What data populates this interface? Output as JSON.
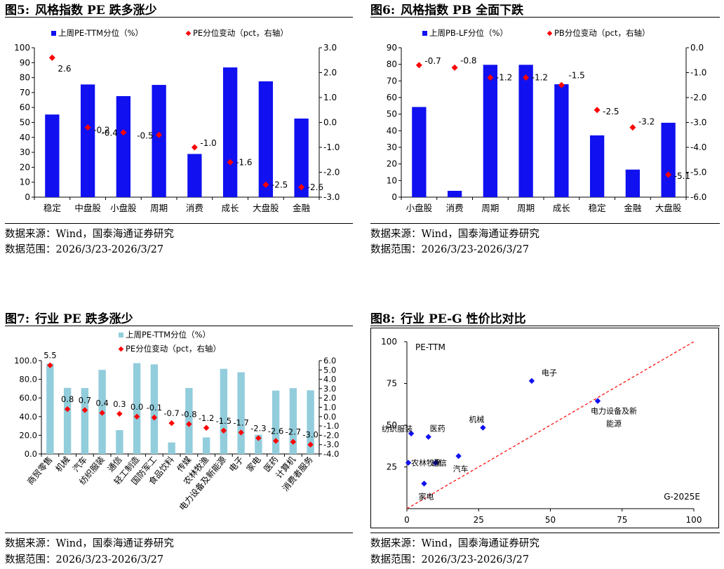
{
  "footer": {
    "source_label": "数据来源：",
    "source_value": "Wind，国泰海通证券研究",
    "range_label": "数据范围：",
    "range_value": "2026/3/23-2026/3/27"
  },
  "colors": {
    "blue": "#1010F0",
    "light_blue": "#92CDDC",
    "red": "#FF0000"
  },
  "panels": [
    {
      "fig_num": "图5:",
      "title": "风格指数 PE 跌多涨少"
    },
    {
      "fig_num": "图6:",
      "title": "风格指数 PB 全面下跌"
    },
    {
      "fig_num": "图7:",
      "title": "行业 PE 跌多涨少"
    },
    {
      "fig_num": "图8:",
      "title": "行业 PE-G 性价比对比"
    }
  ],
  "chart_data": [
    {
      "type": "bar",
      "categories": [
        "稳定",
        "中盘股",
        "小盘股",
        "周期",
        "消费",
        "成长",
        "大盘股",
        "金融"
      ],
      "series": [
        {
          "name": "上周PE-TTM分位（%）",
          "kind": "bar",
          "axis": "left",
          "values": [
            55.3,
            75.4,
            67.6,
            75.1,
            28.9,
            86.8,
            77.5,
            52.6
          ]
        },
        {
          "name": "PE分位变动（pct，右轴）",
          "kind": "marker",
          "axis": "right",
          "values": [
            2.6,
            -0.2,
            -0.4,
            -0.5,
            -1.0,
            -1.6,
            -2.5,
            -2.6
          ],
          "labels": [
            "2.6",
            "-0.2",
            "-0.4",
            "-0.5",
            "-1.0",
            "-1.6",
            "-2.5",
            "-2.6"
          ]
        }
      ],
      "ylim": [
        0,
        100
      ],
      "yticks": [
        "0",
        "10",
        "20",
        "30",
        "40",
        "50",
        "60",
        "70",
        "80",
        "90",
        "100"
      ],
      "y2lim": [
        -3,
        3
      ],
      "y2ticks": [
        "-3.0",
        "-2.0",
        "-1.0",
        "0.0",
        "1.0",
        "2.0",
        "3.0"
      ],
      "legend": "top"
    },
    {
      "type": "bar",
      "categories": [
        "小盘股",
        "消费",
        "周期",
        "周期",
        "成长",
        "稳定",
        "金融",
        "大盘股"
      ],
      "series": [
        {
          "name": "上周PB-LF分位（%）",
          "kind": "bar",
          "axis": "left",
          "values": [
            54.3,
            3.8,
            79.7,
            79.7,
            68.0,
            37.2,
            16.6,
            44.8
          ]
        },
        {
          "name": "PB分位变动（pct，右轴）",
          "kind": "marker",
          "axis": "right",
          "values": [
            -0.7,
            -0.8,
            -1.2,
            -1.2,
            -1.5,
            -2.5,
            -3.2,
            -5.1
          ],
          "labels": [
            "-0.7",
            "-0.8",
            "-1.2",
            "-1.2",
            "-1.5",
            "-2.5",
            "-3.2",
            "-5.1"
          ]
        }
      ],
      "ylim": [
        0,
        90
      ],
      "yticks": [
        "0",
        "10",
        "20",
        "30",
        "40",
        "50",
        "60",
        "70",
        "80",
        "90"
      ],
      "y2lim": [
        -6,
        0
      ],
      "y2ticks": [
        "-6.0",
        "-5.0",
        "-4.0",
        "-3.0",
        "-2.0",
        "-1.0",
        "0.0"
      ],
      "legend": "top"
    },
    {
      "type": "bar",
      "categories": [
        "商贸零售",
        "机械",
        "汽车",
        "纺织服装",
        "通信",
        "轻工制造",
        "国防军工",
        "食品饮料",
        "传媒",
        "农林牧渔",
        "电力设备及新能源",
        "电子",
        "家电",
        "医药",
        "计算机",
        "消费者服务"
      ],
      "series": [
        {
          "name": "上周PE-TTM分位（%）",
          "kind": "bar",
          "axis": "left",
          "values": [
            96.7,
            70.8,
            70.6,
            90.1,
            25.5,
            97.3,
            96.0,
            12.3,
            70.7,
            17.7,
            91.2,
            87.5,
            20.6,
            67.9,
            70.5,
            68.2
          ]
        },
        {
          "name": "PE分位变动（pct，右轴）",
          "kind": "marker",
          "axis": "right",
          "values": [
            5.5,
            0.8,
            0.7,
            0.4,
            0.3,
            0.0,
            -0.1,
            -0.7,
            -0.8,
            -1.2,
            -1.5,
            -1.7,
            -2.3,
            -2.6,
            -2.7,
            -3.0
          ],
          "labels": [
            "5.5",
            "0.8",
            "0.7",
            "0.4",
            "0.3",
            "0.0",
            "-0.1",
            "-0.7",
            "-0.8",
            "-1.2",
            "-1.5",
            "-1.7",
            "-2.3",
            "-2.6",
            "-2.7",
            "-3.0"
          ]
        }
      ],
      "ylim": [
        0,
        100
      ],
      "yticks": [
        "0.0",
        "20.0",
        "40.0",
        "60.0",
        "80.0",
        "100.0"
      ],
      "y2lim": [
        -4,
        6
      ],
      "y2ticks": [
        "-4.0",
        "-3.0",
        "-2.0",
        "-1.0",
        "0.0",
        "1.0",
        "2.0",
        "3.0",
        "4.0",
        "5.0",
        "6.0"
      ],
      "legend": "top"
    },
    {
      "type": "scatter",
      "title_in_plot": "PE-TTM",
      "xlabel": "G-2025E",
      "xlim": [
        0,
        100
      ],
      "ylim": [
        0,
        100
      ],
      "xticks": [
        "0",
        "25",
        "50",
        "75",
        "100"
      ],
      "yticks": [
        "25",
        "50",
        "75",
        "100"
      ],
      "points": [
        {
          "name": "电子",
          "x": 43.5,
          "y": 76.5
        },
        {
          "name": "电力设备及新能源",
          "x": 66.5,
          "y": 64.5
        },
        {
          "name": "机械",
          "x": 26.5,
          "y": 48.5
        },
        {
          "name": "纺织服装",
          "x": 1.5,
          "y": 45.0
        },
        {
          "name": "医药",
          "x": 7.5,
          "y": 43.0
        },
        {
          "name": "汽车",
          "x": 18.0,
          "y": 31.5
        },
        {
          "name": "农林牧渔",
          "x": 0.5,
          "y": 27.5
        },
        {
          "name": "通信",
          "x": 10.0,
          "y": 27.5
        },
        {
          "name": "家电",
          "x": 6.0,
          "y": 15.0
        }
      ],
      "reference_line": {
        "from": [
          0,
          0
        ],
        "to": [
          100,
          100
        ],
        "style": "dashed"
      }
    }
  ]
}
